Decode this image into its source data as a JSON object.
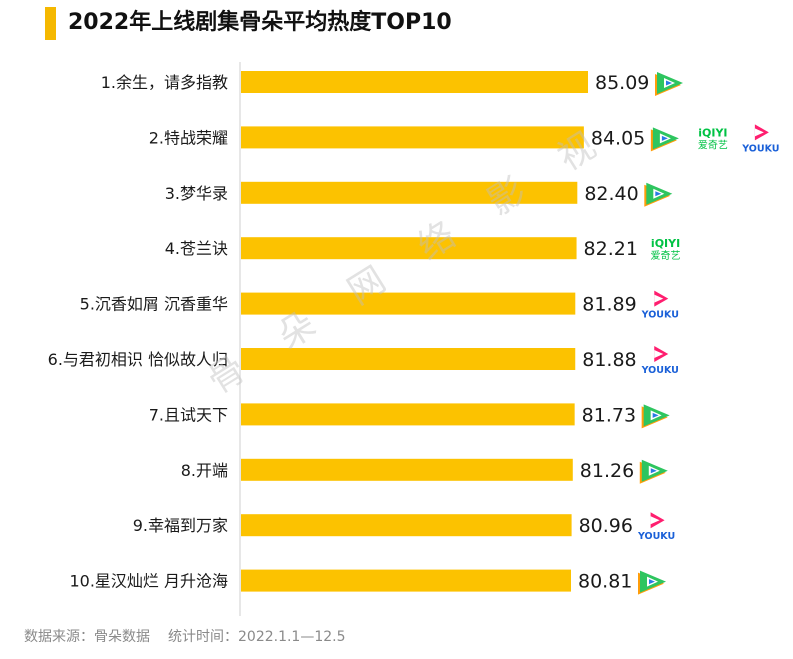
{
  "title": "2022年上线剧集骨朵平均热度TOP10",
  "source_label": "数据来源：骨朵数据",
  "period_label": "统计时间：2022.1.1—12.5",
  "watermark": "骨朵网络影视",
  "colors": {
    "bar": "#fcc200",
    "title_accent": "#f5b800",
    "tencent_green": "#2ec55f",
    "tencent_orange": "#ff9d0a",
    "tencent_blue": "#2a7ae4",
    "iqiyi_green": "#00c244",
    "youku_pink": "#ff1e6f",
    "youku_blue": "#1a60d8"
  },
  "chart_data": {
    "type": "bar",
    "orientation": "horizontal",
    "title": "2022年上线剧集骨朵平均热度TOP10",
    "categories": [
      "1.余生，请多指教",
      "2.特战荣耀",
      "3.梦华录",
      "4.苍兰诀",
      "5.沉香如屑 沉香重华",
      "6.与君初相识 恰似故人归",
      "7.且试天下",
      "8.开端",
      "9.幸福到万家",
      "10.星汉灿烂 月升沧海"
    ],
    "values": [
      85.09,
      84.05,
      82.4,
      82.21,
      81.89,
      81.88,
      81.73,
      81.26,
      80.96,
      80.81
    ],
    "value_labels": [
      "85.09",
      "84.05",
      "82.40",
      "82.21",
      "81.89",
      "81.88",
      "81.73",
      "81.26",
      "80.96",
      "80.81"
    ],
    "platforms": [
      [
        "tencent"
      ],
      [
        "tencent",
        "iqiyi",
        "youku"
      ],
      [
        "tencent"
      ],
      [
        "iqiyi"
      ],
      [
        "youku"
      ],
      [
        "youku"
      ],
      [
        "tencent"
      ],
      [
        "tencent"
      ],
      [
        "youku"
      ],
      [
        "tencent"
      ]
    ],
    "platform_icons": {
      "tencent": "tencent-video-icon",
      "iqiyi": "iqiyi-icon",
      "youku": "youku-icon"
    },
    "logo_text": {
      "iqiyi_top": "iQIYI",
      "iqiyi_bottom": "爱奇艺",
      "youku": "YOUKU"
    },
    "grid": false,
    "legend": "none"
  }
}
